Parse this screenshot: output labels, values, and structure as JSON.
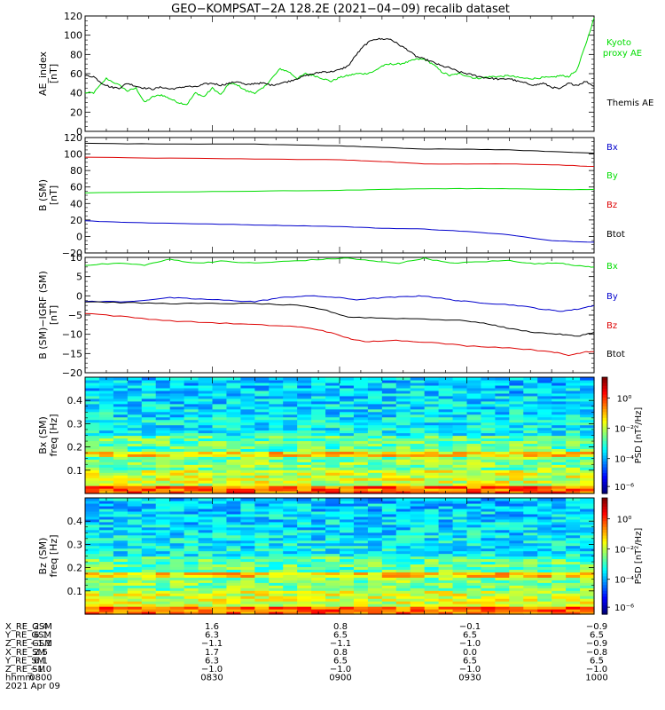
{
  "title": "GEO−KOMPSAT−2A 128.2E (2021−04−09) recalib dataset",
  "chart_data": [
    {
      "type": "line",
      "ylabel": [
        "AE_index",
        "[nT]"
      ],
      "ylim": [
        0,
        120
      ],
      "yticks": [
        0,
        20,
        40,
        60,
        80,
        100,
        120
      ],
      "xlim": [
        0,
        120
      ],
      "series": [
        {
          "name": "Kyoto proxy AE",
          "label_lines": [
            "Kyoto",
            "proxy AE"
          ],
          "color": "#00dd00",
          "points": [
            [
              0,
              40
            ],
            [
              2,
              40
            ],
            [
              5,
              55
            ],
            [
              8,
              48
            ],
            [
              10,
              42
            ],
            [
              12,
              45
            ],
            [
              14,
              30
            ],
            [
              16,
              36
            ],
            [
              18,
              38
            ],
            [
              20,
              34
            ],
            [
              22,
              30
            ],
            [
              24,
              28
            ],
            [
              26,
              40
            ],
            [
              28,
              36
            ],
            [
              30,
              45
            ],
            [
              32,
              38
            ],
            [
              34,
              50
            ],
            [
              36,
              48
            ],
            [
              38,
              42
            ],
            [
              40,
              40
            ],
            [
              42,
              45
            ],
            [
              44,
              55
            ],
            [
              46,
              65
            ],
            [
              48,
              62
            ],
            [
              50,
              55
            ],
            [
              52,
              60
            ],
            [
              54,
              58
            ],
            [
              56,
              55
            ],
            [
              58,
              52
            ],
            [
              60,
              56
            ],
            [
              62,
              58
            ],
            [
              64,
              60
            ],
            [
              66,
              60
            ],
            [
              68,
              62
            ],
            [
              70,
              68
            ],
            [
              72,
              70
            ],
            [
              74,
              70
            ],
            [
              76,
              72
            ],
            [
              78,
              75
            ],
            [
              80,
              75
            ],
            [
              82,
              70
            ],
            [
              84,
              62
            ],
            [
              86,
              58
            ],
            [
              88,
              60
            ],
            [
              90,
              58
            ],
            [
              92,
              55
            ],
            [
              94,
              56
            ],
            [
              96,
              57
            ],
            [
              98,
              57
            ],
            [
              100,
              58
            ],
            [
              102,
              56
            ],
            [
              104,
              55
            ],
            [
              106,
              55
            ],
            [
              108,
              56
            ],
            [
              110,
              56
            ],
            [
              112,
              58
            ],
            [
              114,
              57
            ],
            [
              116,
              64
            ],
            [
              118,
              90
            ],
            [
              120,
              118
            ]
          ]
        },
        {
          "name": "Themis AE",
          "label_lines": [
            "Themis AE"
          ],
          "color": "#000000",
          "points": [
            [
              0,
              58
            ],
            [
              2,
              57
            ],
            [
              4,
              50
            ],
            [
              6,
              46
            ],
            [
              8,
              45
            ],
            [
              10,
              50
            ],
            [
              12,
              47
            ],
            [
              14,
              45
            ],
            [
              16,
              44
            ],
            [
              18,
              46
            ],
            [
              20,
              44
            ],
            [
              22,
              45
            ],
            [
              24,
              47
            ],
            [
              26,
              46
            ],
            [
              28,
              49
            ],
            [
              30,
              50
            ],
            [
              32,
              48
            ],
            [
              34,
              50
            ],
            [
              36,
              52
            ],
            [
              38,
              48
            ],
            [
              40,
              50
            ],
            [
              42,
              50
            ],
            [
              44,
              48
            ],
            [
              46,
              50
            ],
            [
              48,
              52
            ],
            [
              50,
              55
            ],
            [
              52,
              58
            ],
            [
              54,
              60
            ],
            [
              56,
              62
            ],
            [
              58,
              62
            ],
            [
              60,
              64
            ],
            [
              62,
              68
            ],
            [
              64,
              80
            ],
            [
              66,
              90
            ],
            [
              68,
              96
            ],
            [
              70,
              96
            ],
            [
              72,
              96
            ],
            [
              74,
              90
            ],
            [
              76,
              85
            ],
            [
              78,
              78
            ],
            [
              80,
              75
            ],
            [
              82,
              72
            ],
            [
              84,
              68
            ],
            [
              86,
              66
            ],
            [
              88,
              62
            ],
            [
              90,
              60
            ],
            [
              92,
              58
            ],
            [
              94,
              56
            ],
            [
              96,
              55
            ],
            [
              98,
              54
            ],
            [
              100,
              55
            ],
            [
              102,
              52
            ],
            [
              104,
              50
            ],
            [
              106,
              48
            ],
            [
              108,
              50
            ],
            [
              110,
              46
            ],
            [
              112,
              44
            ],
            [
              114,
              50
            ],
            [
              116,
              48
            ],
            [
              118,
              52
            ],
            [
              120,
              47
            ]
          ]
        }
      ]
    },
    {
      "type": "line",
      "ylabel": [
        "B (SM)",
        "[nT]"
      ],
      "ylim": [
        -20,
        120
      ],
      "yticks": [
        -20,
        0,
        20,
        40,
        60,
        80,
        100,
        120
      ],
      "xlim": [
        0,
        120
      ],
      "series": [
        {
          "name": "Bx",
          "color": "#0000cc",
          "points": [
            [
              0,
              19
            ],
            [
              10,
              17
            ],
            [
              20,
              16
            ],
            [
              30,
              15
            ],
            [
              40,
              14
            ],
            [
              50,
              13
            ],
            [
              60,
              12
            ],
            [
              70,
              10
            ],
            [
              80,
              9
            ],
            [
              90,
              6
            ],
            [
              100,
              2
            ],
            [
              110,
              -5
            ],
            [
              120,
              -7
            ]
          ]
        },
        {
          "name": "By",
          "color": "#00dd00",
          "points": [
            [
              0,
              53
            ],
            [
              20,
              54
            ],
            [
              40,
              55
            ],
            [
              60,
              56
            ],
            [
              70,
              57
            ],
            [
              80,
              58
            ],
            [
              90,
              58
            ],
            [
              100,
              58
            ],
            [
              110,
              57
            ],
            [
              120,
              57
            ]
          ]
        },
        {
          "name": "Bz",
          "color": "#dd0000",
          "points": [
            [
              0,
              96
            ],
            [
              20,
              95
            ],
            [
              40,
              94
            ],
            [
              60,
              93
            ],
            [
              70,
              91
            ],
            [
              80,
              88
            ],
            [
              90,
              88
            ],
            [
              100,
              88
            ],
            [
              110,
              87
            ],
            [
              120,
              85
            ]
          ]
        },
        {
          "name": "Btot",
          "color": "#000000",
          "points": [
            [
              0,
              113
            ],
            [
              20,
              112
            ],
            [
              40,
              112
            ],
            [
              60,
              110
            ],
            [
              70,
              108
            ],
            [
              80,
              106
            ],
            [
              90,
              106
            ],
            [
              100,
              105
            ],
            [
              110,
              103
            ],
            [
              120,
              101
            ]
          ]
        }
      ]
    },
    {
      "type": "line",
      "ylabel": [
        "B (SM)−IGRF (SM)",
        "[nT]"
      ],
      "ylim": [
        -20,
        10
      ],
      "yticks": [
        -20,
        -15,
        -10,
        -5,
        0,
        5,
        10
      ],
      "xlim": [
        0,
        120
      ],
      "series": [
        {
          "name": "Bx",
          "color": "#00dd00",
          "points": [
            [
              0,
              8
            ],
            [
              8,
              8.5
            ],
            [
              14,
              8
            ],
            [
              20,
              9.5
            ],
            [
              26,
              8.5
            ],
            [
              32,
              9
            ],
            [
              40,
              8.5
            ],
            [
              48,
              9
            ],
            [
              56,
              9.5
            ],
            [
              62,
              9.8
            ],
            [
              68,
              9
            ],
            [
              74,
              8.5
            ],
            [
              80,
              9.8
            ],
            [
              86,
              8.5
            ],
            [
              92,
              8.8
            ],
            [
              100,
              9.2
            ],
            [
              106,
              8.3
            ],
            [
              112,
              8.6
            ],
            [
              116,
              7.8
            ],
            [
              120,
              7.5
            ]
          ]
        },
        {
          "name": "By",
          "color": "#0000cc",
          "points": [
            [
              0,
              -1.5
            ],
            [
              10,
              -1.5
            ],
            [
              20,
              -0.5
            ],
            [
              26,
              -0.8
            ],
            [
              34,
              -1.2
            ],
            [
              40,
              -1.5
            ],
            [
              46,
              -0.5
            ],
            [
              52,
              0
            ],
            [
              58,
              -0.3
            ],
            [
              64,
              -1
            ],
            [
              70,
              -0.5
            ],
            [
              76,
              -0.2
            ],
            [
              80,
              0
            ],
            [
              86,
              -1
            ],
            [
              90,
              -1.5
            ],
            [
              96,
              -2
            ],
            [
              102,
              -2.5
            ],
            [
              108,
              -3.5
            ],
            [
              112,
              -4
            ],
            [
              116,
              -3.5
            ],
            [
              120,
              -2.5
            ]
          ]
        },
        {
          "name": "Bz",
          "color": "#dd0000",
          "points": [
            [
              0,
              -4.5
            ],
            [
              10,
              -5.5
            ],
            [
              20,
              -6.5
            ],
            [
              30,
              -7
            ],
            [
              40,
              -7.5
            ],
            [
              50,
              -8
            ],
            [
              56,
              -9
            ],
            [
              62,
              -11
            ],
            [
              66,
              -12
            ],
            [
              72,
              -11.5
            ],
            [
              80,
              -12
            ],
            [
              90,
              -13
            ],
            [
              100,
              -13.5
            ],
            [
              110,
              -14.5
            ],
            [
              114,
              -15.5
            ],
            [
              118,
              -14.5
            ],
            [
              120,
              -14.5
            ]
          ]
        },
        {
          "name": "Btot",
          "color": "#000000",
          "points": [
            [
              0,
              -1.5
            ],
            [
              10,
              -1.8
            ],
            [
              20,
              -2
            ],
            [
              30,
              -2
            ],
            [
              40,
              -2
            ],
            [
              50,
              -2.5
            ],
            [
              56,
              -3.5
            ],
            [
              62,
              -5.5
            ],
            [
              70,
              -5.8
            ],
            [
              80,
              -6
            ],
            [
              90,
              -6.5
            ],
            [
              96,
              -7.5
            ],
            [
              100,
              -8.5
            ],
            [
              106,
              -9.5
            ],
            [
              112,
              -10
            ],
            [
              116,
              -10.5
            ],
            [
              120,
              -9.5
            ]
          ]
        }
      ]
    },
    {
      "type": "heatmap",
      "ylabel": [
        "Bx (SM)",
        "freq [Hz]"
      ],
      "ylim": [
        0,
        0.5
      ],
      "yticks": [
        0.1,
        0.2,
        0.3,
        0.4
      ],
      "colorbar": {
        "label": "PSD [nT²/Hz]",
        "ticks": [
          "10⁰",
          "10⁻²",
          "10⁻⁴",
          "10⁻⁶"
        ]
      }
    },
    {
      "type": "heatmap",
      "ylabel": [
        "Bz (SM)",
        "freq [Hz]"
      ],
      "ylim": [
        0,
        0.5
      ],
      "yticks": [
        0.1,
        0.2,
        0.3,
        0.4
      ],
      "colorbar": {
        "label": "PSD [nT²/Hz]",
        "ticks": [
          "10⁰",
          "10⁻²",
          "10⁻⁴",
          "10⁻⁶"
        ]
      }
    }
  ],
  "ephemeris": {
    "rows": [
      {
        "label": "X_RE_GSM",
        "values": [
          "2.4",
          "1.6",
          "0.8",
          "−0.1",
          "−0.9"
        ]
      },
      {
        "label": "Y_RE_GSM",
        "values": [
          "6.1",
          "6.3",
          "6.5",
          "6.5",
          "6.5"
        ]
      },
      {
        "label": "Z_RE_GSM",
        "values": [
          "−1.1",
          "−1.1",
          "−1.1",
          "−1.0",
          "−0.9"
        ]
      },
      {
        "label": "X_RE_SM",
        "values": [
          "2.5",
          "1.7",
          "0.8",
          "0.0",
          "−0.8"
        ]
      },
      {
        "label": "Y_RE_SM",
        "values": [
          "6.1",
          "6.3",
          "6.5",
          "6.5",
          "6.5"
        ]
      },
      {
        "label": "Z_RE_SM",
        "values": [
          "−1.0",
          "−1.0",
          "−1.0",
          "−1.0",
          "−1.0"
        ]
      },
      {
        "label": "hhmm",
        "values": [
          "0800",
          "0830",
          "0900",
          "0930",
          "1000"
        ]
      }
    ],
    "date": "2021 Apr 09"
  }
}
